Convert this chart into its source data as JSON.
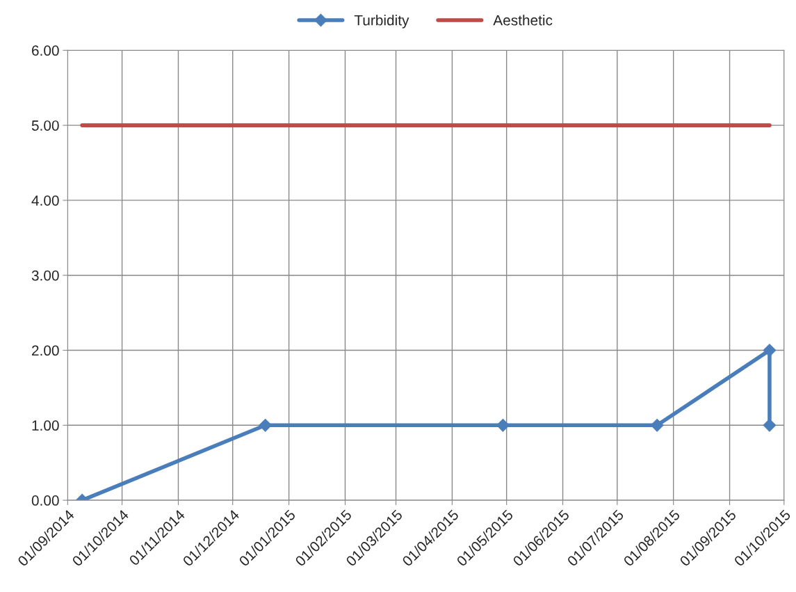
{
  "chart_data": {
    "type": "line",
    "series": [
      {
        "name": "Turbidity",
        "color": "#4a7ebb",
        "marker": "diamond",
        "x": [
          "2014-09-09",
          "2014-12-19",
          "2015-04-29",
          "2015-07-23",
          "2015-09-23",
          "2015-09-23"
        ],
        "values": [
          0,
          1,
          1,
          1,
          2,
          1
        ]
      },
      {
        "name": "Aesthetic",
        "color": "#be4b48",
        "marker": "none",
        "x": [
          "2014-09-09",
          "2015-09-23"
        ],
        "values": [
          5,
          5
        ]
      }
    ],
    "xlim": [
      "2014-09-01",
      "2015-10-01"
    ],
    "xticks": [
      {
        "value": "2014-09-01",
        "label": "01/09/2014"
      },
      {
        "value": "2014-10-01",
        "label": "01/10/2014"
      },
      {
        "value": "2014-11-01",
        "label": "01/11/2014"
      },
      {
        "value": "2014-12-01",
        "label": "01/12/2014"
      },
      {
        "value": "2015-01-01",
        "label": "01/01/2015"
      },
      {
        "value": "2015-02-01",
        "label": "01/02/2015"
      },
      {
        "value": "2015-03-01",
        "label": "01/03/2015"
      },
      {
        "value": "2015-04-01",
        "label": "01/04/2015"
      },
      {
        "value": "2015-05-01",
        "label": "01/05/2015"
      },
      {
        "value": "2015-06-01",
        "label": "01/06/2015"
      },
      {
        "value": "2015-07-01",
        "label": "01/07/2015"
      },
      {
        "value": "2015-08-01",
        "label": "01/08/2015"
      },
      {
        "value": "2015-09-01",
        "label": "01/09/2015"
      },
      {
        "value": "2015-10-01",
        "label": "01/10/2015"
      }
    ],
    "ylim": [
      0,
      6
    ],
    "yticks": [
      {
        "value": 0,
        "label": "0.00"
      },
      {
        "value": 1,
        "label": "1.00"
      },
      {
        "value": 2,
        "label": "2.00"
      },
      {
        "value": 3,
        "label": "3.00"
      },
      {
        "value": 4,
        "label": "4.00"
      },
      {
        "value": 5,
        "label": "5.00"
      },
      {
        "value": 6,
        "label": "6.00"
      }
    ],
    "grid": true,
    "legend": "top",
    "line_style": "solid"
  }
}
